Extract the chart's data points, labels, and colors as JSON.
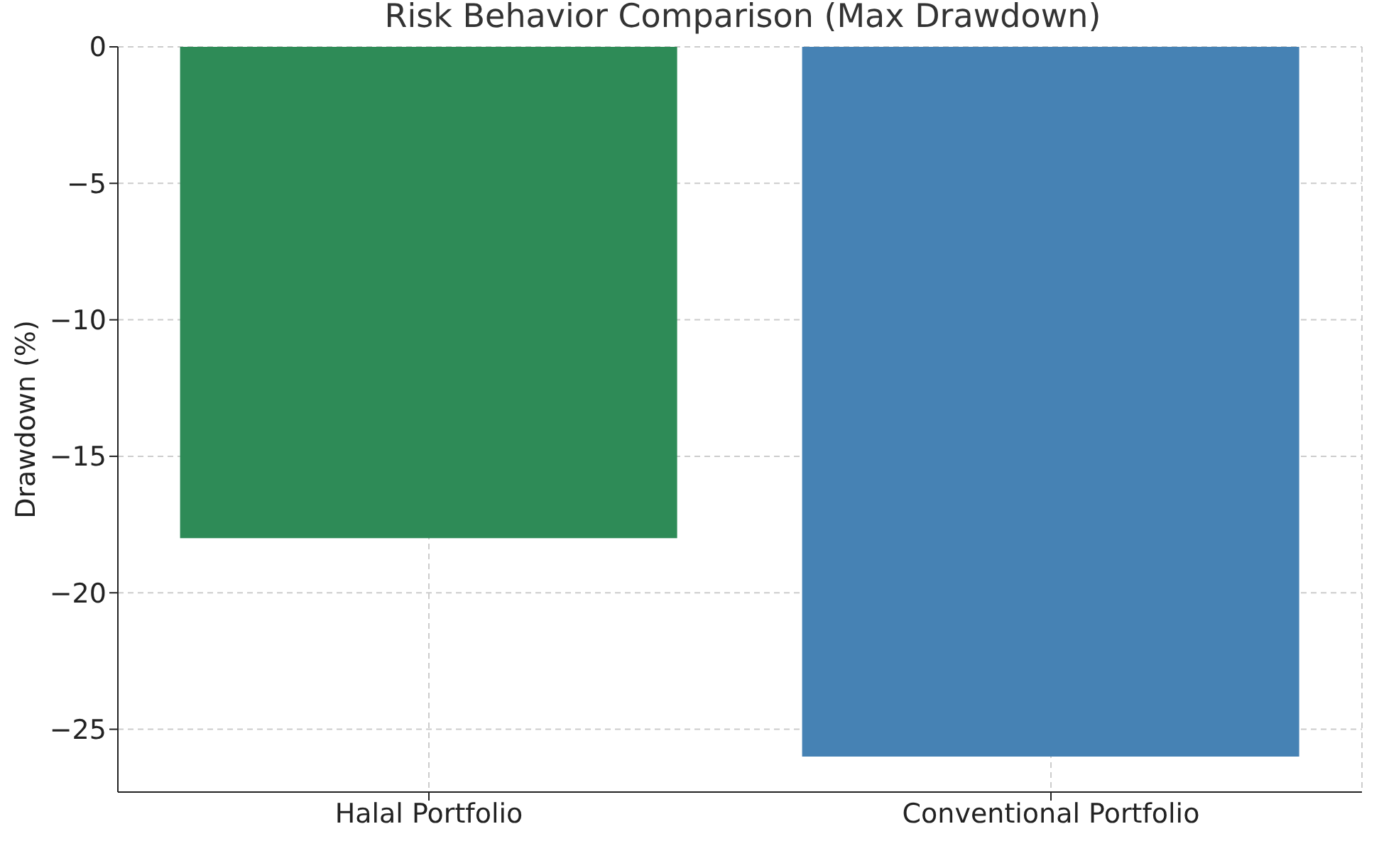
{
  "chart_data": {
    "type": "bar",
    "title": "Risk Behavior Comparison (Max Drawdown)",
    "ylabel": "Drawdown (%)",
    "categories": [
      "Halal Portfolio",
      "Conventional Portfolio"
    ],
    "values": [
      -18,
      -26
    ],
    "colors": [
      "#2e8b57",
      "#4682b4"
    ],
    "ylim": [
      -27.3,
      0
    ],
    "yticks": [
      0,
      -5,
      -10,
      -15,
      -20,
      -25
    ],
    "grid": true
  }
}
